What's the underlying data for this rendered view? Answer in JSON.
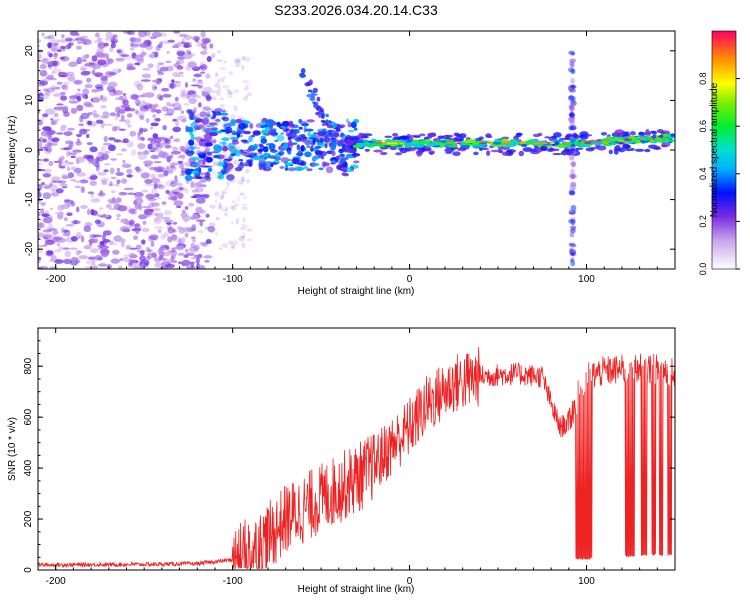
{
  "title": "S233.2026.034.20.14.C33",
  "colors": {
    "snr_line": "#ee2222",
    "axis": "#000000",
    "dot_base": "#7a2be0"
  },
  "chart_data": [
    {
      "type": "heatmap",
      "xlabel": "Height of straight line (km)",
      "ylabel": "Frequency (Hz)",
      "xlim": [
        -210,
        150
      ],
      "ylim": [
        -24,
        24
      ],
      "xticks": [
        -200,
        -100,
        0,
        100
      ],
      "yticks": [
        -20,
        -10,
        0,
        10,
        20
      ],
      "colorbar": {
        "label": "Normalized spectral amplitude",
        "range": [
          0,
          1
        ],
        "ticks": [
          "0.0",
          "0.2",
          "0.4",
          "0.6",
          "0.8"
        ],
        "tick_values": [
          0.0,
          0.2,
          0.4,
          0.6,
          0.8
        ]
      },
      "features": {
        "noise_region_km": [
          -210,
          -100
        ],
        "signal_ridge_freq_hz": 1.5,
        "diagonal_branch": {
          "from": [
            -60,
            16
          ],
          "to": [
            -35,
            -5
          ]
        },
        "vertical_stripe_km": 92
      }
    },
    {
      "type": "line",
      "xlabel": "Height of straight line (km)",
      "ylabel": "SNR (10 * v/v)",
      "xlim": [
        -210,
        150
      ],
      "ylim": [
        0,
        950
      ],
      "xticks": [
        -200,
        -100,
        0,
        100
      ],
      "yticks": [
        0,
        200,
        400,
        600,
        800
      ],
      "envelope": {
        "x": [
          -210,
          -150,
          -120,
          -100,
          -85,
          -70,
          -55,
          -40,
          -25,
          -15,
          0,
          10,
          25,
          40,
          60,
          75,
          80,
          85,
          90,
          95,
          100,
          110,
          125,
          140,
          150
        ],
        "y": [
          20,
          22,
          25,
          40,
          90,
          200,
          260,
          320,
          380,
          450,
          560,
          650,
          730,
          760,
          770,
          760,
          650,
          560,
          580,
          680,
          760,
          780,
          790,
          790,
          780
        ]
      },
      "dropouts": [
        {
          "x_range": [
            94,
            103
          ],
          "level": 40
        },
        {
          "x_range": [
            122,
            127
          ],
          "level": 50
        },
        {
          "x_range": [
            131,
            134
          ],
          "level": 55
        },
        {
          "x_range": [
            137,
            139
          ],
          "level": 55
        },
        {
          "x_range": [
            141,
            143
          ],
          "level": 55
        },
        {
          "x_range": [
            146,
            148
          ],
          "level": 55
        }
      ]
    }
  ]
}
